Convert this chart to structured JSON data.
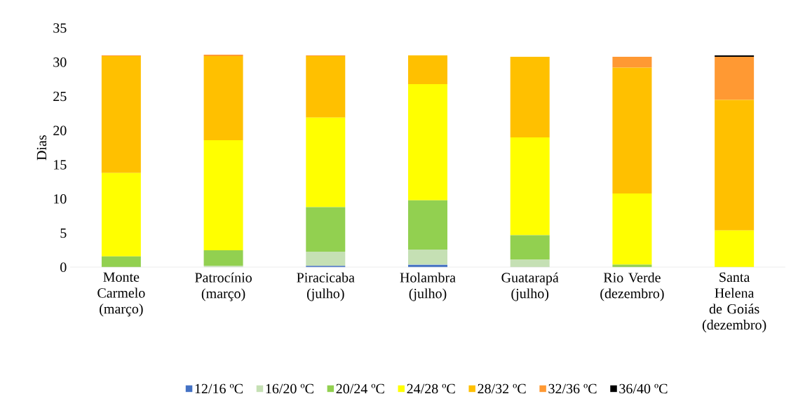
{
  "chart_data": {
    "type": "bar",
    "stacked": true,
    "ylabel": "Dias",
    "categories": [
      "Monte Carmelo (março)",
      "Patrocínio (março)",
      "Piracicaba (julho)",
      "Holambra (julho)",
      "Guatarapá (julho)",
      "Rio Verde (dezembro)",
      "Santa Helena de Goiás (dezembro)"
    ],
    "series": [
      {
        "name": "12/16 ºC",
        "color": "#4472c4",
        "values": [
          0,
          0,
          0.2,
          0.4,
          0,
          0,
          0
        ]
      },
      {
        "name": "16/20  ºC",
        "color": "#c5e0b4",
        "values": [
          0,
          0.2,
          2.1,
          2.2,
          1.1,
          0,
          0
        ]
      },
      {
        "name": "20/24 ºC",
        "color": "#92d050",
        "values": [
          1.6,
          2.3,
          6.5,
          7.2,
          3.6,
          0.4,
          0
        ]
      },
      {
        "name": "24/28 ºC",
        "color": "#ffff00",
        "values": [
          12.2,
          16.1,
          13.1,
          17.0,
          14.3,
          10.4,
          5.4
        ]
      },
      {
        "name": "28/32 ºC",
        "color": "#ffc000",
        "values": [
          17.1,
          12.3,
          9.0,
          4.2,
          11.8,
          18.4,
          19.1
        ]
      },
      {
        "name": "32/36  ºC",
        "color": "#ff9933",
        "values": [
          0.1,
          0.2,
          0.1,
          0,
          0,
          1.6,
          6.3
        ]
      },
      {
        "name": "36/40 ºC",
        "color": "#000000",
        "values": [
          0,
          0,
          0,
          0,
          0,
          0,
          0.2
        ]
      }
    ],
    "ylim": [
      0,
      35
    ],
    "yticks": [
      0,
      5,
      10,
      15,
      20,
      25,
      30,
      35
    ],
    "grid": false,
    "legend": "bottom"
  }
}
